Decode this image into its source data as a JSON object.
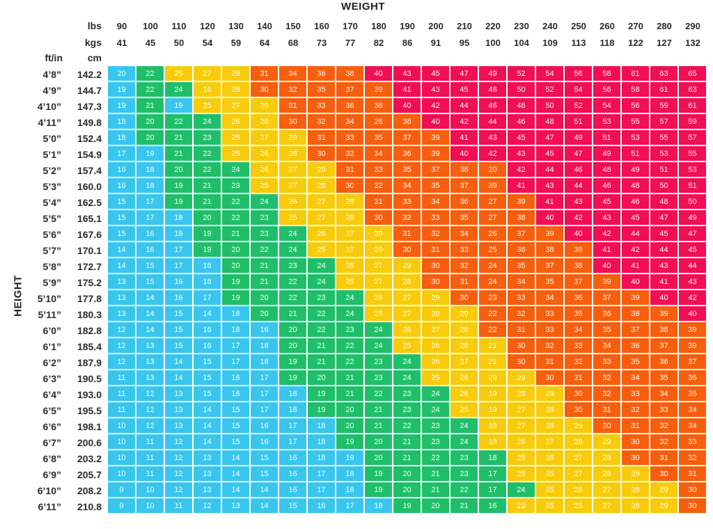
{
  "header": {
    "title": "WEIGHT",
    "ylabel": "HEIGHT",
    "lbs_label": "lbs",
    "kgs_label": "kgs",
    "ftin_label": "ft/in",
    "cm_label": "cm"
  },
  "colors": {
    "blue": "#39c6ee",
    "green": "#1fbf6a",
    "yellow": "#f8cb0c",
    "orange": "#f75e0e",
    "red": "#f20e52"
  },
  "chart_data": {
    "type": "table",
    "title": "WEIGHT",
    "xlabel": "WEIGHT",
    "ylabel": "HEIGHT",
    "lbs": [
      "90",
      "100",
      "110",
      "120",
      "130",
      "140",
      "150",
      "160",
      "170",
      "180",
      "190",
      "200",
      "210",
      "220",
      "230",
      "240",
      "250",
      "260",
      "270",
      "280",
      "290"
    ],
    "kgs": [
      "41",
      "45",
      "50",
      "54",
      "59",
      "64",
      "68",
      "73",
      "77",
      "82",
      "86",
      "91",
      "95",
      "100",
      "104",
      "109",
      "113",
      "118",
      "122",
      "127",
      "132"
    ],
    "heights_ftin": [
      "4’8”",
      "4’9”",
      "4’10”",
      "4’11”",
      "5’0”",
      "5’1”",
      "5’2”",
      "5’3”",
      "5’4”",
      "5’5”",
      "5’6”",
      "5’7”",
      "5’8”",
      "5’9”",
      "5’10”",
      "5’11”",
      "6’0”",
      "6’1”",
      "6’2”",
      "6’3”",
      "6’4”",
      "6’5”",
      "6’6”",
      "6’7”",
      "6’8”",
      "6’9”",
      "6’10”",
      "6’11”"
    ],
    "heights_cm": [
      "142.2",
      "144.7",
      "147.3",
      "149.8",
      "152.4",
      "154.9",
      "157.4",
      "160.0",
      "162.5",
      "165.1",
      "167.6",
      "170.1",
      "172.7",
      "175.2",
      "177.8",
      "180.3",
      "182.8",
      "185.4",
      "187.9",
      "190.5",
      "193.0",
      "195.5",
      "198.1",
      "200.6",
      "203.2",
      "205.7",
      "208.2",
      "210.8"
    ],
    "values": [
      [
        20,
        22,
        25,
        27,
        29,
        31,
        34,
        36,
        38,
        40,
        43,
        45,
        47,
        49,
        52,
        54,
        56,
        58,
        61,
        63,
        65
      ],
      [
        19,
        22,
        24,
        16,
        28,
        30,
        32,
        35,
        37,
        39,
        41,
        43,
        45,
        48,
        50,
        52,
        54,
        56,
        58,
        61,
        63
      ],
      [
        19,
        21,
        19,
        25,
        27,
        29,
        31,
        33,
        36,
        38,
        40,
        42,
        44,
        46,
        48,
        50,
        52,
        54,
        56,
        59,
        61
      ],
      [
        18,
        20,
        22,
        24,
        26,
        28,
        30,
        32,
        34,
        26,
        38,
        40,
        42,
        44,
        46,
        48,
        51,
        53,
        55,
        57,
        59
      ],
      [
        18,
        20,
        21,
        23,
        25,
        27,
        29,
        31,
        33,
        35,
        37,
        39,
        41,
        43,
        45,
        47,
        49,
        51,
        53,
        55,
        57
      ],
      [
        17,
        19,
        21,
        22,
        25,
        26,
        28,
        30,
        32,
        34,
        36,
        39,
        40,
        42,
        43,
        45,
        47,
        49,
        51,
        53,
        55
      ],
      [
        16,
        18,
        20,
        22,
        24,
        26,
        27,
        29,
        31,
        33,
        35,
        37,
        38,
        20,
        42,
        44,
        46,
        48,
        49,
        51,
        53
      ],
      [
        16,
        18,
        19,
        21,
        23,
        25,
        27,
        28,
        30,
        32,
        34,
        35,
        37,
        39,
        41,
        43,
        44,
        46,
        48,
        50,
        51
      ],
      [
        15,
        17,
        19,
        21,
        22,
        24,
        26,
        27,
        29,
        31,
        33,
        34,
        36,
        27,
        39,
        41,
        43,
        45,
        46,
        48,
        50
      ],
      [
        15,
        17,
        18,
        20,
        22,
        23,
        25,
        27,
        28,
        30,
        32,
        33,
        35,
        27,
        38,
        40,
        42,
        43,
        45,
        47,
        49
      ],
      [
        15,
        16,
        18,
        19,
        21,
        23,
        24,
        26,
        27,
        29,
        31,
        32,
        34,
        26,
        37,
        39,
        40,
        42,
        44,
        45,
        47
      ],
      [
        14,
        16,
        17,
        19,
        20,
        22,
        24,
        25,
        27,
        29,
        30,
        31,
        33,
        25,
        36,
        38,
        39,
        41,
        42,
        44,
        45
      ],
      [
        14,
        15,
        17,
        18,
        20,
        21,
        23,
        24,
        26,
        27,
        29,
        30,
        32,
        24,
        35,
        37,
        38,
        40,
        41,
        43,
        44
      ],
      [
        13,
        15,
        16,
        18,
        19,
        21,
        22,
        24,
        25,
        27,
        28,
        30,
        31,
        24,
        34,
        35,
        37,
        39,
        40,
        41,
        43
      ],
      [
        13,
        14,
        16,
        17,
        19,
        20,
        22,
        23,
        24,
        26,
        27,
        29,
        30,
        23,
        33,
        34,
        36,
        37,
        39,
        40,
        42
      ],
      [
        13,
        14,
        15,
        14,
        18,
        20,
        21,
        22,
        24,
        25,
        27,
        28,
        29,
        22,
        32,
        33,
        35,
        36,
        38,
        39,
        40
      ],
      [
        12,
        14,
        15,
        16,
        18,
        16,
        20,
        22,
        23,
        24,
        26,
        27,
        28,
        22,
        31,
        33,
        34,
        35,
        37,
        38,
        39
      ],
      [
        12,
        13,
        15,
        16,
        17,
        18,
        20,
        21,
        22,
        24,
        25,
        26,
        28,
        21,
        30,
        32,
        33,
        34,
        36,
        37,
        39
      ],
      [
        12,
        13,
        14,
        15,
        17,
        18,
        19,
        21,
        22,
        23,
        24,
        26,
        27,
        21,
        30,
        31,
        32,
        33,
        35,
        36,
        37
      ],
      [
        11,
        13,
        14,
        15,
        16,
        17,
        19,
        20,
        21,
        23,
        24,
        25,
        26,
        20,
        29,
        30,
        31,
        32,
        34,
        35,
        36
      ],
      [
        11,
        12,
        13,
        15,
        16,
        17,
        18,
        19,
        21,
        22,
        23,
        24,
        26,
        19,
        28,
        29,
        30,
        32,
        33,
        34,
        35
      ],
      [
        11,
        12,
        13,
        14,
        15,
        17,
        18,
        19,
        20,
        21,
        23,
        24,
        25,
        19,
        27,
        28,
        30,
        31,
        32,
        33,
        34
      ],
      [
        10,
        12,
        13,
        14,
        15,
        16,
        17,
        18,
        20,
        21,
        22,
        23,
        24,
        18,
        27,
        28,
        29,
        30,
        31,
        32,
        34
      ],
      [
        10,
        11,
        12,
        14,
        15,
        16,
        17,
        18,
        19,
        20,
        21,
        23,
        24,
        18,
        26,
        27,
        28,
        29,
        30,
        32,
        33
      ],
      [
        10,
        11,
        12,
        13,
        14,
        15,
        16,
        18,
        19,
        20,
        21,
        22,
        23,
        18,
        25,
        26,
        27,
        28,
        30,
        31,
        32
      ],
      [
        10,
        11,
        12,
        13,
        14,
        15,
        16,
        17,
        18,
        19,
        20,
        21,
        23,
        17,
        25,
        25,
        27,
        28,
        29,
        30,
        31
      ],
      [
        9,
        10,
        12,
        13,
        14,
        14,
        16,
        17,
        18,
        19,
        20,
        21,
        22,
        17,
        24,
        25,
        26,
        27,
        28,
        29,
        30
      ],
      [
        9,
        10,
        11,
        12,
        13,
        14,
        15,
        16,
        17,
        18,
        19,
        20,
        21,
        16,
        23,
        25,
        25,
        27,
        28,
        29,
        30
      ]
    ],
    "category_colors": [
      [
        "blue",
        "green",
        "yellow",
        "yellow",
        "yellow",
        "orange",
        "orange",
        "orange",
        "orange",
        "red",
        "red",
        "red",
        "red",
        "red",
        "red",
        "red",
        "red",
        "red",
        "red",
        "red",
        "red"
      ],
      [
        "blue",
        "green",
        "green",
        "yellow",
        "yellow",
        "orange",
        "orange",
        "orange",
        "orange",
        "orange",
        "red",
        "red",
        "red",
        "red",
        "red",
        "red",
        "red",
        "red",
        "red",
        "red",
        "red"
      ],
      [
        "blue",
        "green",
        "blue",
        "yellow",
        "yellow",
        "yellow",
        "orange",
        "orange",
        "orange",
        "orange",
        "red",
        "red",
        "red",
        "red",
        "red",
        "red",
        "red",
        "red",
        "red",
        "red",
        "red"
      ],
      [
        "blue",
        "green",
        "green",
        "green",
        "yellow",
        "yellow",
        "orange",
        "orange",
        "orange",
        "orange",
        "orange",
        "red",
        "red",
        "red",
        "red",
        "red",
        "red",
        "red",
        "red",
        "red",
        "red"
      ],
      [
        "blue",
        "green",
        "green",
        "green",
        "yellow",
        "yellow",
        "yellow",
        "orange",
        "orange",
        "orange",
        "orange",
        "orange",
        "red",
        "red",
        "red",
        "red",
        "red",
        "red",
        "red",
        "red",
        "red"
      ],
      [
        "blue",
        "blue",
        "green",
        "green",
        "yellow",
        "yellow",
        "yellow",
        "orange",
        "orange",
        "orange",
        "orange",
        "orange",
        "red",
        "red",
        "red",
        "red",
        "red",
        "red",
        "red",
        "red",
        "red"
      ],
      [
        "blue",
        "blue",
        "green",
        "green",
        "green",
        "yellow",
        "yellow",
        "yellow",
        "orange",
        "orange",
        "orange",
        "orange",
        "orange",
        "orange",
        "red",
        "red",
        "red",
        "red",
        "red",
        "red",
        "red"
      ],
      [
        "blue",
        "blue",
        "green",
        "green",
        "green",
        "yellow",
        "yellow",
        "yellow",
        "orange",
        "orange",
        "orange",
        "orange",
        "orange",
        "orange",
        "red",
        "red",
        "red",
        "red",
        "red",
        "red",
        "red"
      ],
      [
        "blue",
        "blue",
        "green",
        "green",
        "green",
        "green",
        "yellow",
        "yellow",
        "yellow",
        "orange",
        "orange",
        "orange",
        "orange",
        "orange",
        "orange",
        "red",
        "red",
        "red",
        "red",
        "red",
        "red"
      ],
      [
        "blue",
        "blue",
        "blue",
        "green",
        "green",
        "green",
        "yellow",
        "yellow",
        "yellow",
        "orange",
        "orange",
        "orange",
        "orange",
        "orange",
        "orange",
        "red",
        "red",
        "red",
        "red",
        "red",
        "red"
      ],
      [
        "blue",
        "blue",
        "blue",
        "green",
        "green",
        "green",
        "green",
        "yellow",
        "yellow",
        "yellow",
        "orange",
        "orange",
        "orange",
        "orange",
        "orange",
        "orange",
        "red",
        "red",
        "red",
        "red",
        "red"
      ],
      [
        "blue",
        "blue",
        "blue",
        "green",
        "green",
        "green",
        "green",
        "yellow",
        "yellow",
        "yellow",
        "orange",
        "orange",
        "orange",
        "orange",
        "orange",
        "orange",
        "orange",
        "red",
        "red",
        "red",
        "red"
      ],
      [
        "blue",
        "blue",
        "blue",
        "blue",
        "green",
        "green",
        "green",
        "green",
        "yellow",
        "yellow",
        "yellow",
        "orange",
        "orange",
        "orange",
        "orange",
        "orange",
        "orange",
        "red",
        "red",
        "red",
        "red"
      ],
      [
        "blue",
        "blue",
        "blue",
        "blue",
        "green",
        "green",
        "green",
        "green",
        "yellow",
        "yellow",
        "yellow",
        "orange",
        "orange",
        "orange",
        "orange",
        "orange",
        "orange",
        "orange",
        "red",
        "red",
        "red"
      ],
      [
        "blue",
        "blue",
        "blue",
        "blue",
        "green",
        "green",
        "green",
        "green",
        "green",
        "yellow",
        "yellow",
        "yellow",
        "orange",
        "orange",
        "orange",
        "orange",
        "orange",
        "orange",
        "orange",
        "red",
        "red"
      ],
      [
        "blue",
        "blue",
        "blue",
        "blue",
        "blue",
        "green",
        "green",
        "green",
        "green",
        "yellow",
        "yellow",
        "yellow",
        "yellow",
        "orange",
        "orange",
        "orange",
        "orange",
        "orange",
        "orange",
        "orange",
        "red"
      ],
      [
        "blue",
        "blue",
        "blue",
        "blue",
        "blue",
        "blue",
        "green",
        "green",
        "green",
        "green",
        "yellow",
        "yellow",
        "yellow",
        "orange",
        "orange",
        "orange",
        "orange",
        "orange",
        "orange",
        "orange",
        "orange"
      ],
      [
        "blue",
        "blue",
        "blue",
        "blue",
        "blue",
        "blue",
        "green",
        "green",
        "green",
        "green",
        "yellow",
        "yellow",
        "yellow",
        "yellow",
        "orange",
        "orange",
        "orange",
        "orange",
        "orange",
        "orange",
        "orange"
      ],
      [
        "blue",
        "blue",
        "blue",
        "blue",
        "blue",
        "blue",
        "green",
        "green",
        "green",
        "green",
        "green",
        "yellow",
        "yellow",
        "yellow",
        "orange",
        "orange",
        "orange",
        "orange",
        "orange",
        "orange",
        "orange"
      ],
      [
        "blue",
        "blue",
        "blue",
        "blue",
        "blue",
        "blue",
        "green",
        "green",
        "green",
        "green",
        "green",
        "yellow",
        "yellow",
        "yellow",
        "yellow",
        "orange",
        "orange",
        "orange",
        "orange",
        "orange",
        "orange"
      ],
      [
        "blue",
        "blue",
        "blue",
        "blue",
        "blue",
        "blue",
        "blue",
        "green",
        "green",
        "green",
        "green",
        "green",
        "yellow",
        "yellow",
        "yellow",
        "yellow",
        "orange",
        "orange",
        "orange",
        "orange",
        "orange"
      ],
      [
        "blue",
        "blue",
        "blue",
        "blue",
        "blue",
        "blue",
        "blue",
        "green",
        "green",
        "green",
        "green",
        "green",
        "yellow",
        "yellow",
        "yellow",
        "yellow",
        "orange",
        "orange",
        "orange",
        "orange",
        "orange"
      ],
      [
        "blue",
        "blue",
        "blue",
        "blue",
        "blue",
        "blue",
        "blue",
        "blue",
        "green",
        "green",
        "green",
        "green",
        "green",
        "yellow",
        "yellow",
        "yellow",
        "yellow",
        "orange",
        "orange",
        "orange",
        "orange"
      ],
      [
        "blue",
        "blue",
        "blue",
        "blue",
        "blue",
        "blue",
        "blue",
        "blue",
        "green",
        "green",
        "green",
        "green",
        "green",
        "yellow",
        "yellow",
        "yellow",
        "yellow",
        "yellow",
        "orange",
        "orange",
        "orange"
      ],
      [
        "blue",
        "blue",
        "blue",
        "blue",
        "blue",
        "blue",
        "blue",
        "blue",
        "blue",
        "green",
        "green",
        "green",
        "green",
        "green",
        "yellow",
        "yellow",
        "yellow",
        "yellow",
        "orange",
        "orange",
        "orange"
      ],
      [
        "blue",
        "blue",
        "blue",
        "blue",
        "blue",
        "blue",
        "blue",
        "blue",
        "blue",
        "green",
        "green",
        "green",
        "green",
        "green",
        "yellow",
        "yellow",
        "yellow",
        "yellow",
        "yellow",
        "orange",
        "orange"
      ],
      [
        "blue",
        "blue",
        "blue",
        "blue",
        "blue",
        "blue",
        "blue",
        "blue",
        "blue",
        "green",
        "green",
        "green",
        "green",
        "green",
        "green",
        "yellow",
        "yellow",
        "yellow",
        "yellow",
        "yellow",
        "orange"
      ],
      [
        "blue",
        "blue",
        "blue",
        "blue",
        "blue",
        "blue",
        "blue",
        "blue",
        "blue",
        "blue",
        "green",
        "green",
        "green",
        "green",
        "yellow",
        "yellow",
        "yellow",
        "yellow",
        "yellow",
        "yellow",
        "orange"
      ]
    ]
  }
}
